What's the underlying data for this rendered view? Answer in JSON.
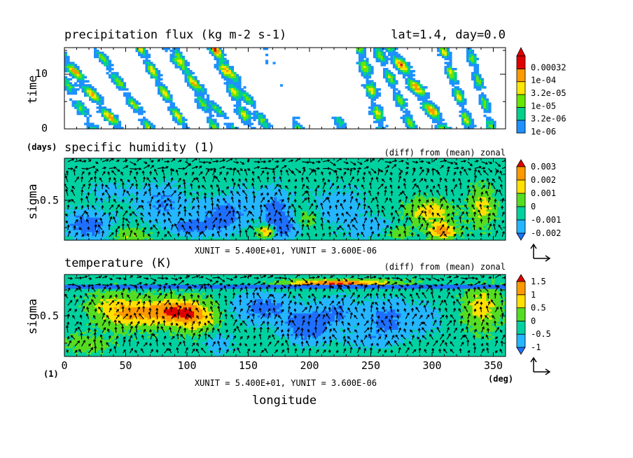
{
  "chart_data": [
    {
      "type": "heatmap",
      "title": "precipitation flux (kg m-2 s-1)",
      "title_right": "lat=1.4, day=0.0",
      "ylabel": "time",
      "y_unit_label": "(days)",
      "xlim": [
        0,
        360
      ],
      "ylim": [
        0,
        15
      ],
      "y_ticks": [
        "0",
        "10"
      ],
      "colorbar": {
        "labels": [
          "1e-06",
          "3.2e-06",
          "1e-05",
          "3.2e-05",
          "1e-04",
          "0.00032"
        ],
        "colors": [
          "#1e90ff",
          "#00d18c",
          "#66e600",
          "#ffe600",
          "#ff9900",
          "#e00000"
        ]
      }
    },
    {
      "type": "heatmap",
      "title": "specific humidity (1)",
      "annotation": "(diff) from (mean) zonal",
      "ylabel": "sigma",
      "xlim": [
        0,
        360
      ],
      "y_ticks": [
        "0.5"
      ],
      "vector_units": "XUNIT = 5.400E+01, YUNIT = 3.600E-06",
      "colorbar": {
        "labels": [
          "-0.002",
          "-0.001",
          "0",
          "0.001",
          "0.002",
          "0.003"
        ],
        "colors": [
          "#1e6fff",
          "#24b6ff",
          "#00d1a0",
          "#55dd22",
          "#ffe000",
          "#ff9900",
          "#e00000"
        ]
      }
    },
    {
      "type": "heatmap",
      "title": "temperature (K)",
      "annotation": "(diff) from (mean) zonal",
      "ylabel": "sigma",
      "xlabel": "longitude",
      "x_unit_label": "(deg)",
      "y_unit_label": "(1)",
      "xlim": [
        0,
        360
      ],
      "x_ticks": [
        "0",
        "50",
        "100",
        "150",
        "200",
        "250",
        "300",
        "350"
      ],
      "y_ticks": [
        "0.5"
      ],
      "vector_units": "XUNIT = 5.400E+01, YUNIT = 3.600E-06",
      "colorbar": {
        "labels": [
          "-1",
          "-0.5",
          "0",
          "0.5",
          "1",
          "1.5"
        ],
        "colors": [
          "#1e6fff",
          "#24b6ff",
          "#00d1a0",
          "#55dd22",
          "#ffe000",
          "#ff9900",
          "#e00000"
        ]
      }
    }
  ]
}
